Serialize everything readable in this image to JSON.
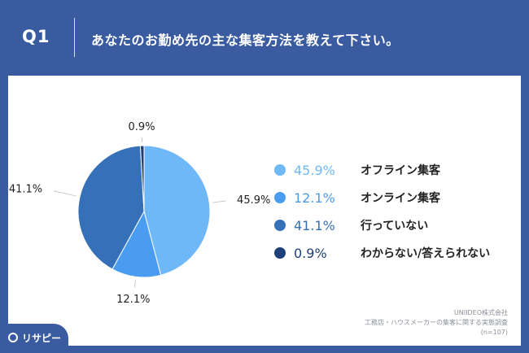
{
  "header": {
    "qnum": "Q1",
    "question": "あなたのお勤め先の主な集客方法を教えて下さい。"
  },
  "colors": {
    "background": "#3a5ba0",
    "series": [
      "#6fb8f7",
      "#4a9cf0",
      "#3670b8",
      "#1f3f78"
    ]
  },
  "chart_data": {
    "type": "pie",
    "categories": [
      "オフライン集客",
      "オンライン集客",
      "行っていない",
      "わからない/答えられない"
    ],
    "values": [
      45.9,
      12.1,
      41.1,
      0.9
    ],
    "value_labels": [
      "45.9%",
      "12.1%",
      "41.1%",
      "0.9%"
    ],
    "title": "",
    "legend_position": "right",
    "start_angle": "top",
    "direction": "clockwise"
  },
  "footer": {
    "company": "UNIIDEO株式会社",
    "survey": "工務店・ハウスメーカーの集客に関する実態調査",
    "sample": "(n=107)"
  },
  "logo": {
    "text": "リサピー",
    "icon": "location-pin-icon"
  }
}
